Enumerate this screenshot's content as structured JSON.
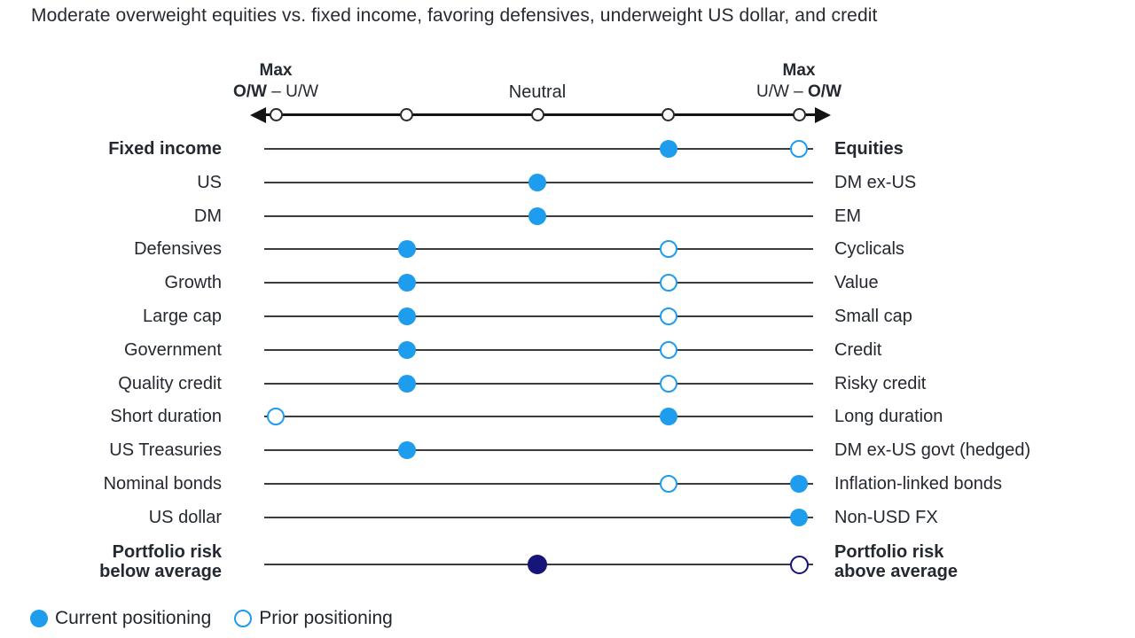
{
  "title": "Moderate overweight equities vs. fixed income, favoring defensives, underweight US dollar, and credit",
  "colors": {
    "current_blue": "#1E9CEE",
    "risk_navy": "#15157A",
    "row_line": "#3C3C3C",
    "axis_black": "#141414",
    "text": "#242830"
  },
  "axis": {
    "left": {
      "line1": "Max",
      "bold": "O/W",
      "rest": " – U/W"
    },
    "center": "Neutral",
    "right": {
      "line1": "Max",
      "rest": "U/W – ",
      "bold": "O/W"
    }
  },
  "legend": [
    {
      "marker": "current-filled-dot",
      "label": "Current positioning"
    },
    {
      "marker": "prior-open-dot",
      "label": "Prior positioning"
    }
  ],
  "chart_data": {
    "type": "dumbbell-positioning",
    "scale": {
      "min": -2,
      "max": 2,
      "tick_values": [
        -2,
        -1,
        0,
        1,
        2
      ],
      "left_end_label": "Max O/W – U/W",
      "center_label": "Neutral",
      "right_end_label": "Max U/W – O/W"
    },
    "rows": [
      {
        "left": "Fixed income",
        "right": "Equities",
        "bold": true,
        "risk": false,
        "current": 1,
        "prior": 2
      },
      {
        "left": "US",
        "right": "DM ex-US",
        "bold": false,
        "risk": false,
        "current": 0,
        "prior": null
      },
      {
        "left": "DM",
        "right": "EM",
        "bold": false,
        "risk": false,
        "current": 0,
        "prior": null
      },
      {
        "left": "Defensives",
        "right": "Cyclicals",
        "bold": false,
        "risk": false,
        "current": -1,
        "prior": 1
      },
      {
        "left": "Growth",
        "right": "Value",
        "bold": false,
        "risk": false,
        "current": -1,
        "prior": 1
      },
      {
        "left": "Large cap",
        "right": "Small cap",
        "bold": false,
        "risk": false,
        "current": -1,
        "prior": 1
      },
      {
        "left": "Government",
        "right": "Credit",
        "bold": false,
        "risk": false,
        "current": -1,
        "prior": 1
      },
      {
        "left": "Quality credit",
        "right": "Risky credit",
        "bold": false,
        "risk": false,
        "current": -1,
        "prior": 1
      },
      {
        "left": "Short duration",
        "right": "Long duration",
        "bold": false,
        "risk": false,
        "current": 1,
        "prior": -2
      },
      {
        "left": "US Treasuries",
        "right": "DM ex-US govt (hedged)",
        "bold": false,
        "risk": false,
        "current": -1,
        "prior": null
      },
      {
        "left": "Nominal bonds",
        "right": "Inflation-linked bonds",
        "bold": false,
        "risk": false,
        "current": 2,
        "prior": 1
      },
      {
        "left": "US dollar",
        "right": "Non-USD FX",
        "bold": false,
        "risk": false,
        "current": 2,
        "prior": null
      },
      {
        "left": "Portfolio risk\nbelow average",
        "right": "Portfolio risk\nabove average",
        "bold": true,
        "risk": true,
        "current": 0,
        "prior": 2
      }
    ]
  }
}
